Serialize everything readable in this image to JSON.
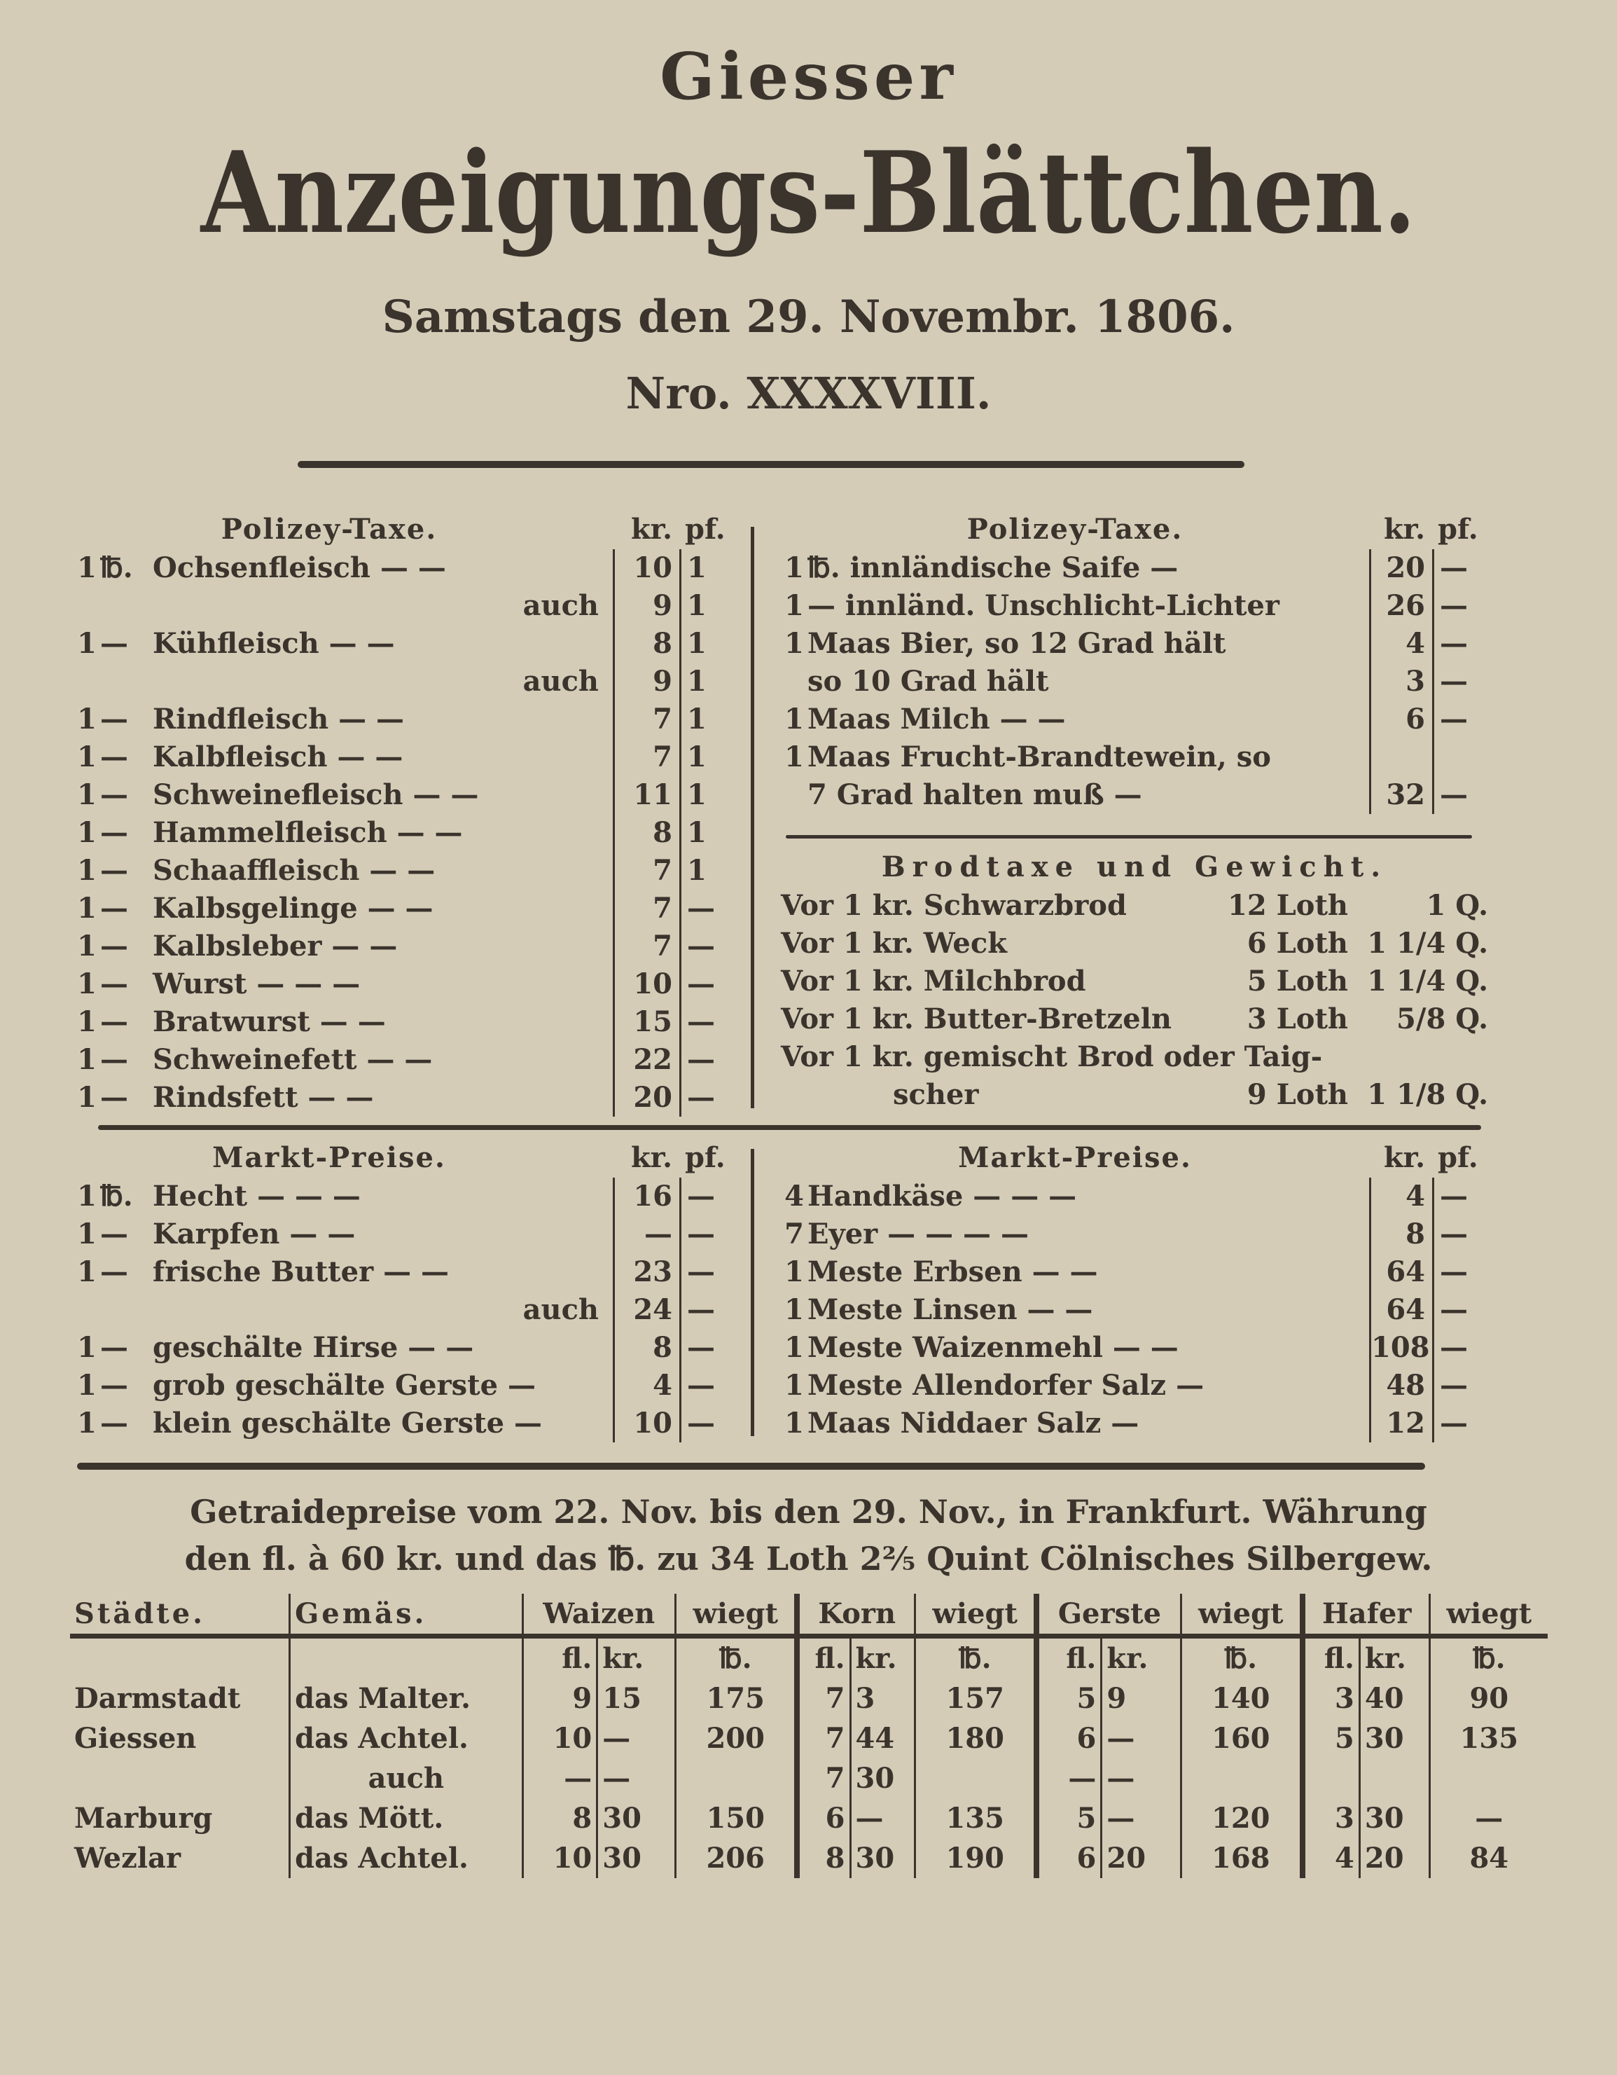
{
  "masthead": {
    "kicker": "Giesser",
    "title": "Anzeigungs-Blättchen.",
    "date": "Samstags den 29. Novembr. 1806.",
    "number": "Nro. XXXXVIII."
  },
  "polizey_left": {
    "title": "Polizey-Taxe.",
    "col_kr": "kr.",
    "col_pf": "pf.",
    "rows": [
      {
        "q": "1",
        "u": "℔.",
        "name": "Ochsenfleisch  —  —",
        "kr": "10",
        "pf": "1"
      },
      {
        "q": "",
        "u": "",
        "name": "auch",
        "kr": "9",
        "pf": "1"
      },
      {
        "q": "1",
        "u": "—",
        "name": "Kühfleisch  —  —",
        "kr": "8",
        "pf": "1"
      },
      {
        "q": "",
        "u": "",
        "name": "auch",
        "kr": "9",
        "pf": "1"
      },
      {
        "q": "1",
        "u": "—",
        "name": "Rindfleisch  —  —",
        "kr": "7",
        "pf": "1"
      },
      {
        "q": "1",
        "u": "—",
        "name": "Kalbfleisch  —  —",
        "kr": "7",
        "pf": "1"
      },
      {
        "q": "1",
        "u": "—",
        "name": "Schweinefleisch —  —",
        "kr": "11",
        "pf": "1"
      },
      {
        "q": "1",
        "u": "—",
        "name": "Hammelfleisch —  —",
        "kr": "8",
        "pf": "1"
      },
      {
        "q": "1",
        "u": "—",
        "name": "Schaaffleisch  —  —",
        "kr": "7",
        "pf": "1"
      },
      {
        "q": "1",
        "u": "—",
        "name": "Kalbsgelinge  —  —",
        "kr": "7",
        "pf": "—"
      },
      {
        "q": "1",
        "u": "—",
        "name": "Kalbsleber  —  —",
        "kr": "7",
        "pf": "—"
      },
      {
        "q": "1",
        "u": "—",
        "name": "Wurst  —  —  —",
        "kr": "10",
        "pf": "—"
      },
      {
        "q": "1",
        "u": "—",
        "name": "Bratwurst  —  —",
        "kr": "15",
        "pf": "—"
      },
      {
        "q": "1",
        "u": "—",
        "name": "Schweinefett  —  —",
        "kr": "22",
        "pf": "—"
      },
      {
        "q": "1",
        "u": "—",
        "name": "Rindsfett  —  —",
        "kr": "20",
        "pf": "—"
      }
    ]
  },
  "polizey_right": {
    "title": "Polizey-Taxe.",
    "col_kr": "kr.",
    "col_pf": "pf.",
    "rows": [
      {
        "q": "1",
        "name": "℔. innländische Saife  —",
        "kr": "20",
        "pf": "—"
      },
      {
        "q": "1",
        "name": "— innländ. Unschlicht-Lichter",
        "kr": "26",
        "pf": "—"
      },
      {
        "q": "1",
        "name": "Maas Bier, so 12 Grad hält",
        "kr": "4",
        "pf": "—"
      },
      {
        "q": "",
        "name": "so 10 Grad hält",
        "kr": "3",
        "pf": "—"
      },
      {
        "q": "1",
        "name": "Maas Milch  —  —",
        "kr": "6",
        "pf": "—"
      },
      {
        "q": "1",
        "name": "Maas Frucht-Brandtewein, so",
        "kr": "",
        "pf": ""
      },
      {
        "q": "",
        "name": "7 Grad halten muß  —",
        "kr": "32",
        "pf": "—"
      }
    ]
  },
  "brodtaxe": {
    "title": "Brodtaxe und Gewicht.",
    "rows": [
      {
        "item": "Vor 1 kr. Schwarzbrod",
        "loth": "12 Loth",
        "q": "1 Q."
      },
      {
        "item": "Vor 1 kr. Weck",
        "loth": "6 Loth",
        "q": "1 1/4 Q."
      },
      {
        "item": "Vor 1 kr. Milchbrod",
        "loth": "5 Loth",
        "q": "1 1/4 Q."
      },
      {
        "item": "Vor 1 kr. Butter-Bretzeln",
        "loth": "3 Loth",
        "q": "5/8 Q."
      },
      {
        "item": "Vor 1 kr. gemischt Brod oder Taig-",
        "loth": "",
        "q": ""
      },
      {
        "item": "scher",
        "loth": "9 Loth",
        "q": "1 1/8 Q."
      }
    ]
  },
  "markt_left": {
    "title": "Markt-Preise.",
    "col_kr": "kr.",
    "col_pf": "pf.",
    "rows": [
      {
        "q": "1",
        "u": "℔.",
        "name": "Hecht  —  —  —",
        "kr": "16",
        "pf": "—"
      },
      {
        "q": "1",
        "u": "—",
        "name": "Karpfen  —  —",
        "kr": "—",
        "pf": "—"
      },
      {
        "q": "1",
        "u": "—",
        "name": "frische Butter —  —",
        "kr": "23",
        "pf": "—"
      },
      {
        "q": "",
        "u": "",
        "name": "auch",
        "kr": "24",
        "pf": "—"
      },
      {
        "q": "1",
        "u": "—",
        "name": "geschälte Hirse —  —",
        "kr": "8",
        "pf": "—"
      },
      {
        "q": "1",
        "u": "—",
        "name": "grob geschälte Gerste —",
        "kr": "4",
        "pf": "—"
      },
      {
        "q": "1",
        "u": "—",
        "name": "klein geschälte Gerste —",
        "kr": "10",
        "pf": "—"
      }
    ]
  },
  "markt_right": {
    "title": "Markt-Preise.",
    "col_kr": "kr.",
    "col_pf": "pf.",
    "rows": [
      {
        "q": "4",
        "name": "Handkäse  —  —  —",
        "kr": "4",
        "pf": "—"
      },
      {
        "q": "7",
        "name": "Eyer  —  —  —  —",
        "kr": "8",
        "pf": "—"
      },
      {
        "q": "1",
        "name": "Meste Erbsen  —  —",
        "kr": "64",
        "pf": "—"
      },
      {
        "q": "1",
        "name": "Meste Linsen  —  —",
        "kr": "64",
        "pf": "—"
      },
      {
        "q": "1",
        "name": "Meste Waizenmehl  —  —",
        "kr": "108",
        "pf": "—"
      },
      {
        "q": "1",
        "name": "Meste Allendorfer Salz  —",
        "kr": "48",
        "pf": "—"
      },
      {
        "q": "1",
        "name": "Maas Niddaer Salz  —",
        "kr": "12",
        "pf": "—"
      }
    ]
  },
  "getraide": {
    "intro_line1": "Getraidepreise vom 22. Nov. bis den 29. Nov., in Frankfurt. Währung",
    "intro_line2": "den fl. à 60 kr. und das ℔. zu 34 Loth 2⅖ Quint Cölnisches Silbergew.",
    "headers": [
      "Städte.",
      "Gemäs.",
      "Waizen",
      "wiegt",
      "Korn",
      "wiegt",
      "Gerste",
      "wiegt",
      "Hafer",
      "wiegt"
    ],
    "units": {
      "fl": "fl.",
      "kr": "kr.",
      "lb": "℔."
    },
    "rows": [
      {
        "city": "Darmstadt",
        "measure": "das Malter.",
        "w_fl": "9",
        "w_kr": "15",
        "w_lb": "175",
        "k_fl": "7",
        "k_kr": "3",
        "k_lb": "157",
        "g_fl": "5",
        "g_kr": "9",
        "g_lb": "140",
        "h_fl": "3",
        "h_kr": "40",
        "h_lb": "90"
      },
      {
        "city": "Giessen",
        "measure": "das Achtel.",
        "w_fl": "10",
        "w_kr": "—",
        "w_lb": "200",
        "k_fl": "7",
        "k_kr": "44",
        "k_lb": "180",
        "g_fl": "6",
        "g_kr": "—",
        "g_lb": "160",
        "h_fl": "5",
        "h_kr": "30",
        "h_lb": "135"
      },
      {
        "city": "",
        "measure": "auch",
        "w_fl": "—",
        "w_kr": "—",
        "w_lb": "",
        "k_fl": "7",
        "k_kr": "30",
        "k_lb": "",
        "g_fl": "—",
        "g_kr": "—",
        "g_lb": "",
        "h_fl": "",
        "h_kr": "",
        "h_lb": ""
      },
      {
        "city": "Marburg",
        "measure": "das Mött.",
        "w_fl": "8",
        "w_kr": "30",
        "w_lb": "150",
        "k_fl": "6",
        "k_kr": "—",
        "k_lb": "135",
        "g_fl": "5",
        "g_kr": "—",
        "g_lb": "120",
        "h_fl": "3",
        "h_kr": "30",
        "h_lb": "—"
      },
      {
        "city": "Wezlar",
        "measure": "das Achtel.",
        "w_fl": "10",
        "w_kr": "30",
        "w_lb": "206",
        "k_fl": "8",
        "k_kr": "30",
        "k_lb": "190",
        "g_fl": "6",
        "g_kr": "20",
        "g_lb": "168",
        "h_fl": "4",
        "h_kr": "20",
        "h_lb": "84"
      }
    ]
  }
}
